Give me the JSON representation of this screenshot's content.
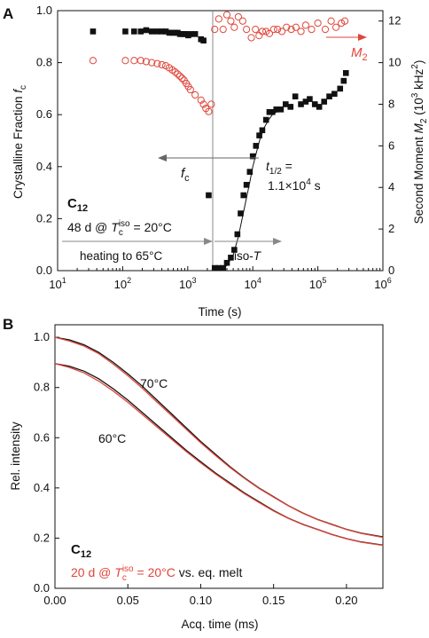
{
  "chart_data": [
    {
      "panel": "A",
      "type": "scatter",
      "x_scale": "log",
      "xlim": [
        10,
        1000000
      ],
      "x_ticks": [
        "10^1",
        "10^2",
        "10^3",
        "10^4",
        "10^5",
        "10^6"
      ],
      "xlabel": "Time (s)",
      "ylabel_left": "Crystalline Fraction f_c",
      "ylim_left": [
        0,
        1.0
      ],
      "yticks_left": [
        "0.0",
        "0.2",
        "0.4",
        "0.6",
        "0.8",
        "1.0"
      ],
      "ylabel_right": "Second Moment M_2 (10^3 kHz^2)",
      "ylim_right": [
        0,
        12.5
      ],
      "yticks_right": [
        "0",
        "2",
        "4",
        "6",
        "8",
        "10",
        "12"
      ],
      "vertical_line_x": 2400,
      "series": [
        {
          "name": "f_c",
          "axis": "left",
          "marker": "filled-square",
          "color": "#111111",
          "points": [
            [
              35,
              0.92
            ],
            [
              110,
              0.92
            ],
            [
              150,
              0.92
            ],
            [
              190,
              0.92
            ],
            [
              230,
              0.925
            ],
            [
              280,
              0.92
            ],
            [
              340,
              0.92
            ],
            [
              400,
              0.92
            ],
            [
              460,
              0.92
            ],
            [
              520,
              0.915
            ],
            [
              580,
              0.915
            ],
            [
              640,
              0.915
            ],
            [
              700,
              0.915
            ],
            [
              760,
              0.91
            ],
            [
              820,
              0.91
            ],
            [
              880,
              0.91
            ],
            [
              950,
              0.91
            ],
            [
              1020,
              0.905
            ],
            [
              1100,
              0.91
            ],
            [
              1300,
              0.91
            ],
            [
              1600,
              0.89
            ],
            [
              1750,
              0.885
            ],
            [
              2100,
              0.29
            ],
            [
              2600,
              0.01
            ],
            [
              3000,
              0.01
            ],
            [
              3500,
              0.01
            ],
            [
              4000,
              0.03
            ],
            [
              4600,
              0.05
            ],
            [
              5200,
              0.08
            ],
            [
              5800,
              0.14
            ],
            [
              6500,
              0.22
            ],
            [
              7200,
              0.29
            ],
            [
              8000,
              0.33
            ],
            [
              9000,
              0.38
            ],
            [
              10000,
              0.44
            ],
            [
              11200,
              0.48
            ],
            [
              12600,
              0.52
            ],
            [
              14000,
              0.54
            ],
            [
              16000,
              0.58
            ],
            [
              18000,
              0.61
            ],
            [
              20000,
              0.61
            ],
            [
              23000,
              0.62
            ],
            [
              27000,
              0.62
            ],
            [
              32000,
              0.64
            ],
            [
              38000,
              0.63
            ],
            [
              45000,
              0.67
            ],
            [
              55000,
              0.64
            ],
            [
              65000,
              0.65
            ],
            [
              75000,
              0.66
            ],
            [
              90000,
              0.64
            ],
            [
              105000,
              0.63
            ],
            [
              125000,
              0.65
            ],
            [
              150000,
              0.67
            ],
            [
              180000,
              0.68
            ],
            [
              220000,
              0.7
            ],
            [
              250000,
              0.73
            ],
            [
              270000,
              0.76
            ]
          ]
        },
        {
          "name": "M_2",
          "axis": "right",
          "marker": "open-circle",
          "color": "#e0453a",
          "points": [
            [
              35,
              10.1
            ],
            [
              110,
              10.1
            ],
            [
              150,
              10.1
            ],
            [
              190,
              10.1
            ],
            [
              230,
              10.05
            ],
            [
              280,
              10.0
            ],
            [
              340,
              9.95
            ],
            [
              400,
              9.9
            ],
            [
              460,
              9.85
            ],
            [
              520,
              9.75
            ],
            [
              580,
              9.65
            ],
            [
              640,
              9.55
            ],
            [
              700,
              9.45
            ],
            [
              760,
              9.35
            ],
            [
              820,
              9.25
            ],
            [
              880,
              9.15
            ],
            [
              950,
              9.0
            ],
            [
              1020,
              8.85
            ],
            [
              1100,
              8.7
            ],
            [
              1300,
              8.45
            ],
            [
              1600,
              8.2
            ],
            [
              1750,
              8.0
            ],
            [
              1900,
              7.8
            ],
            [
              2100,
              7.65
            ],
            [
              2300,
              8.0
            ],
            [
              2600,
              11.6
            ],
            [
              3000,
              12.1
            ],
            [
              3500,
              11.6
            ],
            [
              4000,
              12.3
            ],
            [
              4600,
              12.0
            ],
            [
              5200,
              11.7
            ],
            [
              6000,
              12.2
            ],
            [
              7000,
              12.0
            ],
            [
              8000,
              11.6
            ],
            [
              9500,
              11.2
            ],
            [
              11000,
              11.6
            ],
            [
              12500,
              11.3
            ],
            [
              14000,
              11.5
            ],
            [
              16000,
              11.5
            ],
            [
              18000,
              11.4
            ],
            [
              21000,
              11.6
            ],
            [
              24000,
              11.6
            ],
            [
              28000,
              11.5
            ],
            [
              33000,
              11.7
            ],
            [
              39000,
              11.6
            ],
            [
              46000,
              11.7
            ],
            [
              55000,
              11.5
            ],
            [
              65000,
              11.8
            ],
            [
              80000,
              11.6
            ],
            [
              100000,
              11.9
            ],
            [
              130000,
              11.6
            ],
            [
              160000,
              12.0
            ],
            [
              190000,
              11.7
            ],
            [
              230000,
              11.9
            ],
            [
              260000,
              12.0
            ]
          ]
        },
        {
          "name": "fit",
          "axis": "left",
          "type": "line",
          "color": "#111111",
          "points": [
            [
              3000,
              0.0
            ],
            [
              4000,
              0.02
            ],
            [
              5000,
              0.06
            ],
            [
              6000,
              0.13
            ],
            [
              7000,
              0.21
            ],
            [
              8000,
              0.28
            ],
            [
              9000,
              0.34
            ],
            [
              10000,
              0.4
            ],
            [
              11500,
              0.46
            ],
            [
              13000,
              0.51
            ],
            [
              15000,
              0.55
            ],
            [
              17500,
              0.58
            ],
            [
              20000,
              0.6
            ],
            [
              23000,
              0.61
            ],
            [
              27000,
              0.615
            ]
          ]
        }
      ],
      "annotations": {
        "m2_label": "M_2",
        "fc_label": "f_c",
        "thalf_label": "t_1/2 =",
        "thalf_value": "1.1×10^4 s",
        "sample": "C_12",
        "condition": "48 d @ T_c^iso = 20°C",
        "heating": "heating to 65°C",
        "isoT": "iso-T"
      }
    },
    {
      "panel": "B",
      "type": "line",
      "xlabel": "Acq. time (ms)",
      "ylabel": "Rel. intensity",
      "xlim": [
        0,
        0.225
      ],
      "ylim": [
        0,
        1.05
      ],
      "x_ticks": [
        "0.00",
        "0.05",
        "0.10",
        "0.15",
        "0.20"
      ],
      "y_ticks": [
        "0.0",
        "0.2",
        "0.4",
        "0.6",
        "0.8",
        "1.0"
      ],
      "series": [
        {
          "name": "70°C",
          "color": "#111111",
          "x": [
            0,
            0.01,
            0.02,
            0.03,
            0.04,
            0.05,
            0.06,
            0.07,
            0.08,
            0.09,
            0.1,
            0.11,
            0.12,
            0.13,
            0.14,
            0.15,
            0.16,
            0.17,
            0.18,
            0.19,
            0.2,
            0.21,
            0.225
          ],
          "values": [
            1.0,
            0.99,
            0.97,
            0.94,
            0.9,
            0.855,
            0.805,
            0.75,
            0.695,
            0.64,
            0.585,
            0.535,
            0.485,
            0.44,
            0.4,
            0.365,
            0.33,
            0.3,
            0.275,
            0.255,
            0.235,
            0.22,
            0.205
          ]
        },
        {
          "name": "70°C eq. melt",
          "color": "#e0453a",
          "x": [
            0,
            0.01,
            0.02,
            0.03,
            0.04,
            0.05,
            0.06,
            0.07,
            0.08,
            0.09,
            0.1,
            0.11,
            0.12,
            0.13,
            0.14,
            0.15,
            0.16,
            0.17,
            0.18,
            0.19,
            0.2,
            0.21,
            0.225
          ],
          "values": [
            1.0,
            0.985,
            0.965,
            0.935,
            0.893,
            0.847,
            0.797,
            0.742,
            0.688,
            0.634,
            0.58,
            0.53,
            0.482,
            0.438,
            0.398,
            0.363,
            0.329,
            0.299,
            0.274,
            0.254,
            0.234,
            0.219,
            0.203
          ]
        },
        {
          "name": "60°C",
          "color": "#111111",
          "x": [
            0,
            0.01,
            0.02,
            0.03,
            0.04,
            0.05,
            0.06,
            0.07,
            0.08,
            0.09,
            0.1,
            0.11,
            0.12,
            0.13,
            0.14,
            0.15,
            0.16,
            0.17,
            0.18,
            0.19,
            0.2,
            0.21,
            0.225
          ],
          "values": [
            0.895,
            0.885,
            0.865,
            0.835,
            0.795,
            0.75,
            0.7,
            0.65,
            0.6,
            0.55,
            0.505,
            0.46,
            0.42,
            0.38,
            0.345,
            0.31,
            0.28,
            0.255,
            0.235,
            0.215,
            0.198,
            0.185,
            0.172
          ]
        },
        {
          "name": "60°C eq. melt",
          "color": "#e0453a",
          "x": [
            0,
            0.01,
            0.02,
            0.03,
            0.04,
            0.05,
            0.06,
            0.07,
            0.08,
            0.09,
            0.1,
            0.11,
            0.12,
            0.13,
            0.14,
            0.15,
            0.16,
            0.17,
            0.18,
            0.19,
            0.2,
            0.21,
            0.225
          ],
          "values": [
            0.895,
            0.88,
            0.858,
            0.826,
            0.786,
            0.741,
            0.692,
            0.643,
            0.594,
            0.545,
            0.5,
            0.456,
            0.416,
            0.377,
            0.342,
            0.308,
            0.279,
            0.254,
            0.234,
            0.214,
            0.197,
            0.184,
            0.171
          ]
        }
      ],
      "annotations": {
        "label_70": "70°C",
        "label_60": "60°C",
        "sample": "C_12",
        "legend_red": "20 d @ T_c^iso = 20°C",
        "legend_black": "vs. eq. melt"
      }
    }
  ],
  "text": {
    "panelA": "A",
    "panelB": "B",
    "xlabelA": "Time (s)",
    "ylabelA_main": "Crystalline Fraction ",
    "ylabelA_sym": "f",
    "ylabelA_sub": "c",
    "ylabelR_main": "Second Moment ",
    "ylabelR_sym": "M",
    "ylabelR_sub": "2",
    "ylabelR_unit1": " (10",
    "ylabelR_sup": "3",
    "ylabelR_unit2": " kHz",
    "ylabelR_sup2": "2",
    "ylabelR_unit3": ")",
    "m2_sym": "M",
    "m2_sub": "2",
    "fc_sym": "f",
    "fc_sub": "c",
    "thalf_t": "t",
    "thalf_sub": "1/2",
    "thalf_eq": " =",
    "thalf_val_a": "1.1×10",
    "thalf_val_sup": "4",
    "thalf_val_b": " s",
    "sampleA_c": "C",
    "sampleA_sub": "12",
    "condA_a": "48 d @ ",
    "condA_T": "T",
    "condA_sub": "c",
    "condA_sup": "iso",
    "condA_b": " = 20°C",
    "heating": "heating to 65°C",
    "isoT_a": "iso-",
    "isoT_T": "T",
    "xlabelB": "Acq. time (ms)",
    "ylabelB": "Rel. intensity",
    "label70": "70°C",
    "label60": "60°C",
    "sampleB_c": "C",
    "sampleB_sub": "12",
    "legB_a": "20 d @ ",
    "legB_T": "T",
    "legB_sub": "c",
    "legB_sup": "iso",
    "legB_b": " = 20°C",
    "legB_c": " vs. eq. melt",
    "xticksA": [
      "10",
      "10",
      "10",
      "10",
      "10",
      "10"
    ],
    "xticksA_exp": [
      "1",
      "2",
      "3",
      "4",
      "5",
      "6"
    ]
  },
  "colors": {
    "black": "#111111",
    "red": "#e0453a",
    "gray": "#888888"
  }
}
